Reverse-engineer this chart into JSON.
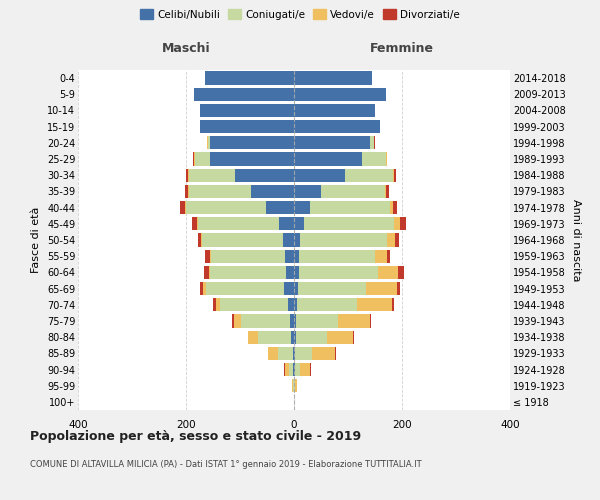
{
  "age_groups": [
    "100+",
    "95-99",
    "90-94",
    "85-89",
    "80-84",
    "75-79",
    "70-74",
    "65-69",
    "60-64",
    "55-59",
    "50-54",
    "45-49",
    "40-44",
    "35-39",
    "30-34",
    "25-29",
    "20-24",
    "15-19",
    "10-14",
    "5-9",
    "0-4"
  ],
  "birth_years": [
    "≤ 1918",
    "1919-1923",
    "1924-1928",
    "1929-1933",
    "1934-1938",
    "1939-1943",
    "1944-1948",
    "1949-1953",
    "1954-1958",
    "1959-1963",
    "1964-1968",
    "1969-1973",
    "1974-1978",
    "1979-1983",
    "1984-1988",
    "1989-1993",
    "1994-1998",
    "1999-2003",
    "2004-2008",
    "2009-2013",
    "2014-2018"
  ],
  "males": {
    "celibi": [
      0,
      0,
      1,
      2,
      5,
      8,
      12,
      18,
      15,
      16,
      20,
      28,
      52,
      80,
      110,
      155,
      155,
      175,
      175,
      185,
      165
    ],
    "coniugati": [
      0,
      2,
      8,
      28,
      62,
      90,
      125,
      145,
      140,
      138,
      150,
      150,
      148,
      115,
      85,
      28,
      5,
      0,
      0,
      0,
      0
    ],
    "vedovi": [
      0,
      2,
      8,
      18,
      18,
      14,
      8,
      5,
      3,
      2,
      2,
      2,
      2,
      2,
      2,
      2,
      1,
      0,
      0,
      0,
      0
    ],
    "divorziati": [
      0,
      0,
      2,
      0,
      0,
      3,
      5,
      6,
      9,
      8,
      5,
      8,
      10,
      5,
      3,
      2,
      1,
      0,
      0,
      0,
      0
    ]
  },
  "females": {
    "nubili": [
      0,
      0,
      1,
      2,
      3,
      4,
      6,
      8,
      10,
      10,
      12,
      18,
      30,
      50,
      95,
      125,
      140,
      160,
      150,
      170,
      145
    ],
    "coniugate": [
      0,
      2,
      10,
      32,
      58,
      78,
      110,
      125,
      145,
      140,
      160,
      168,
      148,
      118,
      88,
      45,
      8,
      0,
      0,
      0,
      0
    ],
    "vedove": [
      0,
      4,
      18,
      42,
      48,
      58,
      65,
      58,
      38,
      22,
      15,
      10,
      5,
      3,
      3,
      2,
      1,
      0,
      0,
      0,
      0
    ],
    "divorziate": [
      0,
      0,
      2,
      2,
      2,
      3,
      5,
      6,
      10,
      5,
      8,
      12,
      8,
      5,
      3,
      1,
      1,
      0,
      0,
      0,
      0
    ]
  },
  "colors": {
    "celibi": "#4472a8",
    "coniugati": "#c5d9a0",
    "vedovi": "#f0c060",
    "divorziati": "#c0392b"
  },
  "xlim": 400,
  "title": "Popolazione per età, sesso e stato civile - 2019",
  "subtitle": "COMUNE DI ALTAVILLA MILICIA (PA) - Dati ISTAT 1° gennaio 2019 - Elaborazione TUTTITALIA.IT",
  "ylabel_left": "Fasce di età",
  "ylabel_right": "Anni di nascita",
  "xlabel_left": "Maschi",
  "xlabel_right": "Femmine",
  "legend_labels": [
    "Celibi/Nubili",
    "Coniugati/e",
    "Vedovi/e",
    "Divorziati/e"
  ],
  "background_color": "#f0f0f0",
  "plot_bg_color": "#ffffff"
}
